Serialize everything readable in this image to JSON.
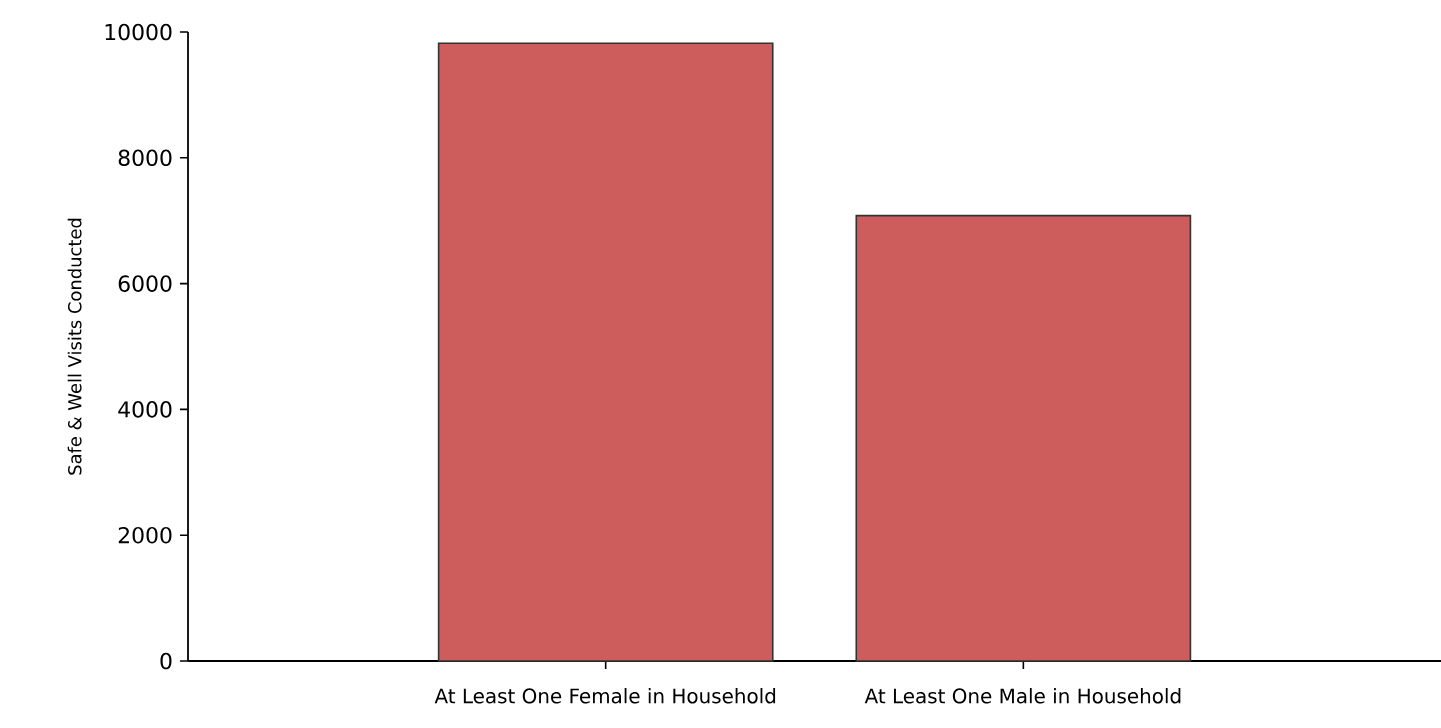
{
  "chart_data": {
    "type": "bar",
    "ylabel": "Safe & Well Visits Conducted",
    "categories": [
      "At Least One Female in Household",
      "At Least One Male in Household"
    ],
    "values": [
      9820,
      7080
    ],
    "color": "#cd5c5c",
    "ylim": [
      0,
      10000
    ],
    "yticks": [
      0,
      2000,
      4000,
      6000,
      8000,
      10000
    ],
    "grid": false
  }
}
